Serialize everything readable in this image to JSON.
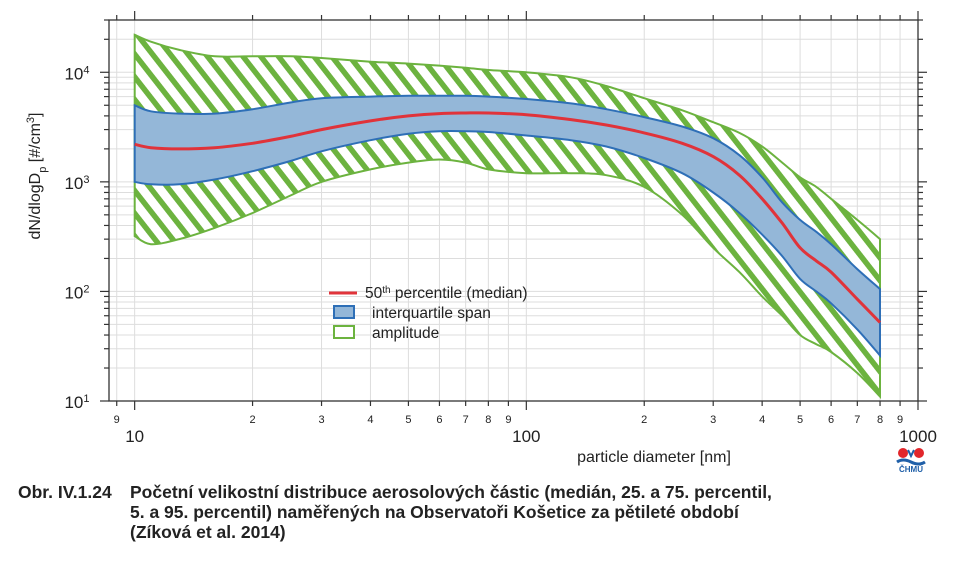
{
  "chart_data": {
    "type": "area",
    "xscale": "log",
    "yscale": "log",
    "xlim": [
      8.6,
      1000
    ],
    "ylim": [
      10,
      30000
    ],
    "grid": true,
    "xlabel": "particle diameter [nm]",
    "ylabel": "dN/dlogD_p [#/cm^3]",
    "x_major_ticks": [
      {
        "value": 10,
        "label": "10"
      },
      {
        "value": 100,
        "label": "100"
      },
      {
        "value": 1000,
        "label": "1000"
      }
    ],
    "x_minor_ticks": [
      {
        "value": 9,
        "label": "9"
      },
      {
        "value": 20,
        "label": "2"
      },
      {
        "value": 30,
        "label": "3"
      },
      {
        "value": 40,
        "label": "4"
      },
      {
        "value": 50,
        "label": "5"
      },
      {
        "value": 60,
        "label": "6"
      },
      {
        "value": 70,
        "label": "7"
      },
      {
        "value": 80,
        "label": "8"
      },
      {
        "value": 90,
        "label": "9"
      },
      {
        "value": 200,
        "label": "2"
      },
      {
        "value": 300,
        "label": "3"
      },
      {
        "value": 400,
        "label": "4"
      },
      {
        "value": 500,
        "label": "5"
      },
      {
        "value": 600,
        "label": "6"
      },
      {
        "value": 700,
        "label": "7"
      },
      {
        "value": 800,
        "label": "8"
      },
      {
        "value": 900,
        "label": "9"
      }
    ],
    "y_major_ticks": [
      {
        "value": 10,
        "base": "10",
        "exp": "1"
      },
      {
        "value": 100,
        "base": "10",
        "exp": "2"
      },
      {
        "value": 1000,
        "base": "10",
        "exp": "3"
      },
      {
        "value": 10000,
        "base": "10",
        "exp": "4"
      }
    ],
    "x": [
      10,
      11,
      13,
      16,
      20,
      25,
      30,
      40,
      50,
      60,
      70,
      80,
      100,
      130,
      160,
      200,
      250,
      300,
      350,
      400,
      450,
      500,
      550,
      600,
      700,
      800
    ],
    "series": [
      {
        "name": "50th percentile (median)",
        "kind": "line",
        "color": "#e0333a",
        "values": [
          2200,
          2050,
          2000,
          2050,
          2250,
          2600,
          3000,
          3600,
          4000,
          4200,
          4250,
          4250,
          4100,
          3700,
          3300,
          2800,
          2250,
          1700,
          1150,
          700,
          420,
          250,
          190,
          150,
          85,
          52
        ]
      },
      {
        "name": "interquartile span",
        "kind": "band",
        "fill": "#94b7d8",
        "stroke": "#2e6fb7",
        "lower": [
          1000,
          950,
          950,
          1050,
          1250,
          1550,
          1900,
          2400,
          2750,
          2900,
          2900,
          2850,
          2650,
          2400,
          2100,
          1650,
          1200,
          800,
          520,
          330,
          210,
          130,
          100,
          78,
          45,
          26
        ],
        "upper": [
          5000,
          4400,
          4200,
          4200,
          4600,
          5300,
          5800,
          6000,
          6100,
          6100,
          6100,
          6000,
          5700,
          5200,
          4600,
          3900,
          3200,
          2500,
          1750,
          1100,
          650,
          450,
          350,
          270,
          160,
          105
        ]
      },
      {
        "name": "amplitude",
        "kind": "band",
        "fill": "hatch",
        "stroke": "#6cb33f",
        "lower": [
          320,
          270,
          300,
          380,
          520,
          750,
          1000,
          1300,
          1500,
          1600,
          1500,
          1300,
          1200,
          1200,
          1150,
          900,
          500,
          250,
          150,
          90,
          60,
          40,
          33,
          28,
          18,
          11
        ],
        "upper": [
          22000,
          19000,
          16000,
          14000,
          14000,
          14000,
          13500,
          12500,
          12000,
          11500,
          11000,
          10500,
          10000,
          9000,
          7500,
          5800,
          4500,
          3500,
          2800,
          2100,
          1500,
          1100,
          900,
          700,
          450,
          300
        ]
      }
    ]
  },
  "caption": {
    "number": "Obr. IV.1.24",
    "line1": "Početní velikostní distribuce aerosolových částic (medián, 25. a 75. percentil,",
    "line2": "5. a 95. percentil) naměřených na Observatoři Košetice za pětileté období",
    "line3": "(Zíková et al. 2014)"
  },
  "legend": {
    "position": "center",
    "median_num": "50",
    "median_sup": "th",
    "median_rest": " percentile (median)",
    "iqr": "interquartile span",
    "amplitude": "amplitude"
  },
  "logo": {
    "text": "ČHMÚ",
    "icon": "chmu-logo-icon"
  }
}
